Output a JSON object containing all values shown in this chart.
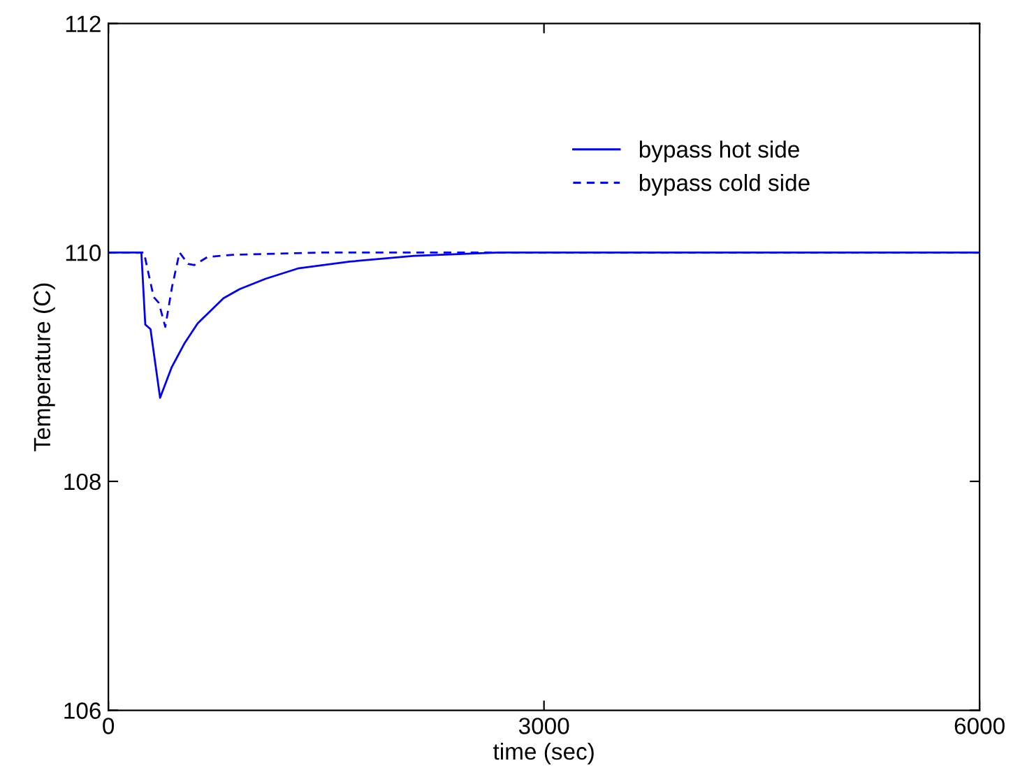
{
  "chart_data": {
    "type": "line",
    "xlabel": "time (sec)",
    "ylabel": "Temperature (C)",
    "xlim": [
      0,
      6000
    ],
    "xticks": [
      0,
      3000,
      6000
    ],
    "ylim": [
      106,
      112
    ],
    "yticks": [
      106,
      108,
      110,
      112
    ],
    "grid": false,
    "legend": "top right",
    "marker": "none",
    "series": [
      {
        "name": "bypass hot side",
        "color": "#0000ff",
        "line_style": "solid",
        "x": [
          0,
          227,
          254,
          290,
          356,
          437,
          526,
          615,
          793,
          904,
          1082,
          1305,
          1661,
          2107,
          2686,
          6000
        ],
        "values": [
          110,
          110,
          109.37,
          109.33,
          108.73,
          109.0,
          109.21,
          109.38,
          109.6,
          109.68,
          109.77,
          109.86,
          109.92,
          109.97,
          110,
          110
        ]
      },
      {
        "name": "bypass cold side",
        "color": "#0000ff",
        "line_style": "dashed",
        "x": [
          0,
          245,
          272,
          312,
          347,
          392,
          437,
          490,
          548,
          592,
          682,
          860,
          1483,
          6000
        ],
        "values": [
          110,
          110,
          109.84,
          109.61,
          109.56,
          109.35,
          109.69,
          110.0,
          109.9,
          109.89,
          109.96,
          109.98,
          110,
          110
        ]
      }
    ]
  }
}
